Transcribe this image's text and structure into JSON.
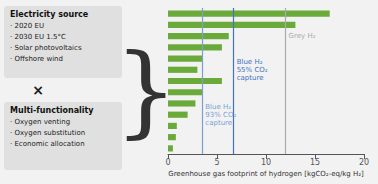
{
  "chart_data": {
    "type": "bar",
    "orientation": "horizontal",
    "categories": [
      null,
      null,
      null,
      null,
      null,
      null,
      null,
      null,
      null,
      null,
      null,
      null,
      null
    ],
    "values": [
      16.5,
      13.0,
      6.2,
      5.5,
      3.5,
      3.0,
      5.5,
      3.5,
      2.8,
      2.0,
      0.9,
      0.8,
      0.5
    ],
    "color": "#6aaa3a",
    "xlabel": "Greenhouse gas footprint of hydrogen [kgCO₂-eq/kg H₂]",
    "xlim": [
      0,
      20
    ],
    "xticks": [
      0,
      5,
      10,
      15,
      20
    ],
    "grid": false,
    "tick_labels": "x",
    "background_color": "#f2f2f2",
    "annotations": [
      {
        "x": 3.5,
        "color": "#7b9fd4",
        "text": [
          "Blue H₂",
          "93% CO₂",
          "capture"
        ]
      },
      {
        "x": 6.7,
        "color": "#4472c4",
        "text": [
          "Blue H₂",
          "55% CO₂",
          "capture"
        ]
      },
      {
        "x": 12.0,
        "color": "#aaaaaa",
        "text": [
          "Grey H₂"
        ]
      }
    ],
    "notes": [
      {
        "title": "Electricity source",
        "items": [
          "· 2020 EU",
          "· 2030 EU 1.5°C",
          "· Solar photovoltaics",
          "· Offshore wind"
        ]
      },
      {
        "title": "Multi-functionality",
        "items": [
          "· Oxygen venting",
          "· Oxygen substitution",
          "· Economic allocation"
        ]
      }
    ],
    "notes_joiner": "×",
    "notes_bracket": "}"
  }
}
